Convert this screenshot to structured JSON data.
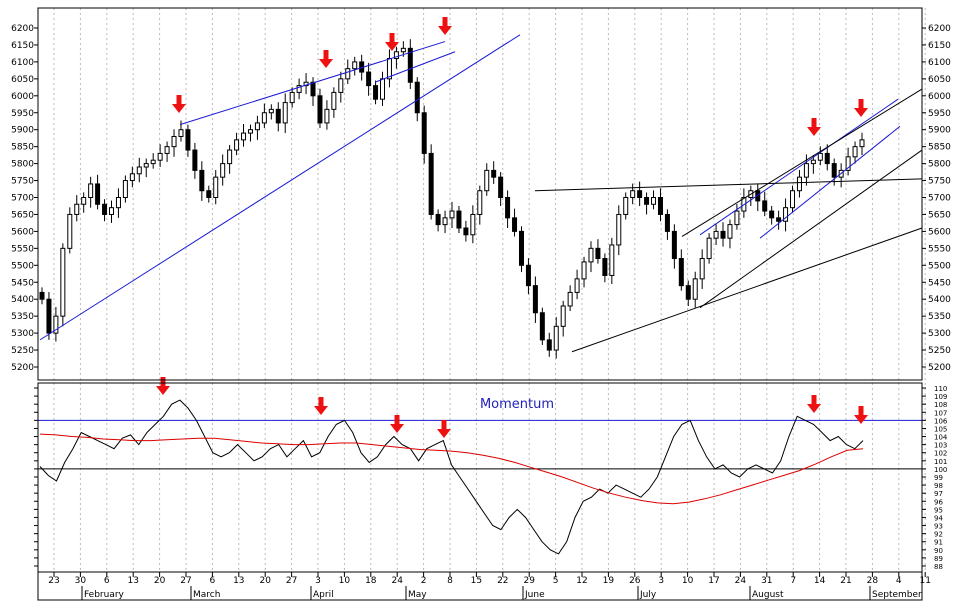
{
  "chart_data": [
    {
      "type": "candlestick",
      "panel": "price",
      "title": "",
      "ylim": [
        5150,
        6250
      ],
      "y_ticks": [
        5200,
        5250,
        5300,
        5350,
        5400,
        5450,
        5500,
        5550,
        5600,
        5650,
        5700,
        5750,
        5800,
        5850,
        5900,
        5950,
        6000,
        6050,
        6100,
        6150,
        6200
      ],
      "x_tick_labels": [
        "23",
        "30",
        "6",
        "13",
        "20",
        "27",
        "6",
        "13",
        "20",
        "27",
        "3",
        "10",
        "18",
        "24",
        "2",
        "8",
        "15",
        "22",
        "29",
        "5",
        "12",
        "19",
        "26",
        "3",
        "10",
        "17",
        "24",
        "31",
        "7",
        "14",
        "21",
        "28",
        "4",
        "11"
      ],
      "month_labels": [
        "February",
        "March",
        "April",
        "May",
        "June",
        "July",
        "August",
        "September"
      ],
      "closes": [
        5400,
        5300,
        5350,
        5550,
        5650,
        5680,
        5700,
        5740,
        5680,
        5650,
        5670,
        5700,
        5750,
        5770,
        5790,
        5800,
        5810,
        5830,
        5850,
        5880,
        5900,
        5840,
        5780,
        5720,
        5700,
        5760,
        5800,
        5840,
        5870,
        5890,
        5900,
        5920,
        5950,
        5960,
        5920,
        5980,
        6010,
        6030,
        6040,
        6000,
        5920,
        5960,
        6010,
        6050,
        6080,
        6100,
        6070,
        6030,
        5990,
        6050,
        6110,
        6130,
        6140,
        6040,
        5950,
        5830,
        5650,
        5620,
        5640,
        5660,
        5610,
        5590,
        5650,
        5720,
        5780,
        5760,
        5700,
        5640,
        5600,
        5500,
        5440,
        5360,
        5280,
        5250,
        5320,
        5380,
        5420,
        5460,
        5510,
        5550,
        5520,
        5470,
        5560,
        5650,
        5700,
        5720,
        5700,
        5680,
        5700,
        5650,
        5600,
        5520,
        5440,
        5400,
        5460,
        5520,
        5580,
        5600,
        5580,
        5620,
        5660,
        5700,
        5720,
        5690,
        5660,
        5640,
        5630,
        5670,
        5720,
        5760,
        5800,
        5810,
        5830,
        5800,
        5760,
        5780,
        5820,
        5850,
        5870
      ],
      "annotations": {
        "wedge_arrows_index": [
          20,
          44,
          52,
          58,
          112,
          116
        ],
        "trendline_count": 8
      }
    },
    {
      "type": "line",
      "panel": "indicator",
      "title": "Momentum",
      "ylim": [
        88,
        110
      ],
      "y_ticks": [
        88,
        89,
        90,
        91,
        92,
        93,
        94,
        95,
        96,
        97,
        98,
        99,
        100,
        101,
        102,
        103,
        104,
        105,
        106,
        107,
        108,
        109,
        110
      ],
      "reference_lines": [
        106,
        100
      ],
      "series": [
        {
          "color": "#000000",
          "values": [
            100.3,
            99.2,
            98.5,
            100.8,
            102.5,
            104.5,
            104.0,
            103.5,
            103.0,
            102.5,
            103.8,
            104.2,
            103.0,
            104.5,
            105.5,
            106.5,
            108.0,
            108.5,
            107.5,
            106.0,
            104.0,
            102.0,
            101.5,
            102.0,
            103.0,
            102.0,
            101.0,
            101.5,
            102.5,
            103.0,
            101.5,
            102.5,
            103.5,
            101.5,
            102.0,
            104.0,
            105.5,
            106.0,
            104.5,
            102.0,
            100.8,
            101.5,
            103.0,
            104.0,
            103.0,
            102.5,
            101.0,
            102.5,
            103.0,
            103.5,
            100.5,
            99.0,
            97.5,
            96.0,
            94.5,
            93.0,
            92.5,
            94.0,
            95.0,
            94.0,
            92.5,
            91.0,
            90.0,
            89.5,
            91.0,
            94.0,
            96.0,
            96.5,
            97.5,
            97.0,
            98.0,
            97.5,
            97.0,
            96.5,
            97.5,
            99.0,
            101.5,
            104.0,
            105.5,
            106.0,
            103.5,
            101.5,
            100.0,
            100.5,
            99.5,
            99.0,
            100.0,
            100.5,
            100.0,
            99.5,
            101.0,
            104.0,
            106.5,
            106.0,
            105.5,
            104.5,
            103.5,
            104.0,
            103.0,
            102.5,
            103.5
          ]
        },
        {
          "color": "#dd0000",
          "values": [
            104.3,
            104.2,
            104.0,
            103.9,
            103.7,
            103.6,
            103.5,
            103.5,
            103.6,
            103.7,
            103.8,
            103.8,
            103.6,
            103.4,
            103.2,
            103.1,
            103.0,
            103.0,
            103.1,
            103.2,
            103.2,
            103.0,
            102.8,
            102.6,
            102.4,
            102.3,
            102.2,
            102.0,
            101.7,
            101.3,
            100.8,
            100.2,
            99.6,
            99.0,
            98.3,
            97.6,
            97.0,
            96.5,
            96.1,
            95.8,
            95.7,
            95.9,
            96.3,
            96.8,
            97.4,
            98.0,
            98.6,
            99.2,
            99.8,
            100.6,
            101.5,
            102.3,
            102.5
          ]
        }
      ],
      "annotations": {
        "arrow_count": 6
      }
    }
  ]
}
